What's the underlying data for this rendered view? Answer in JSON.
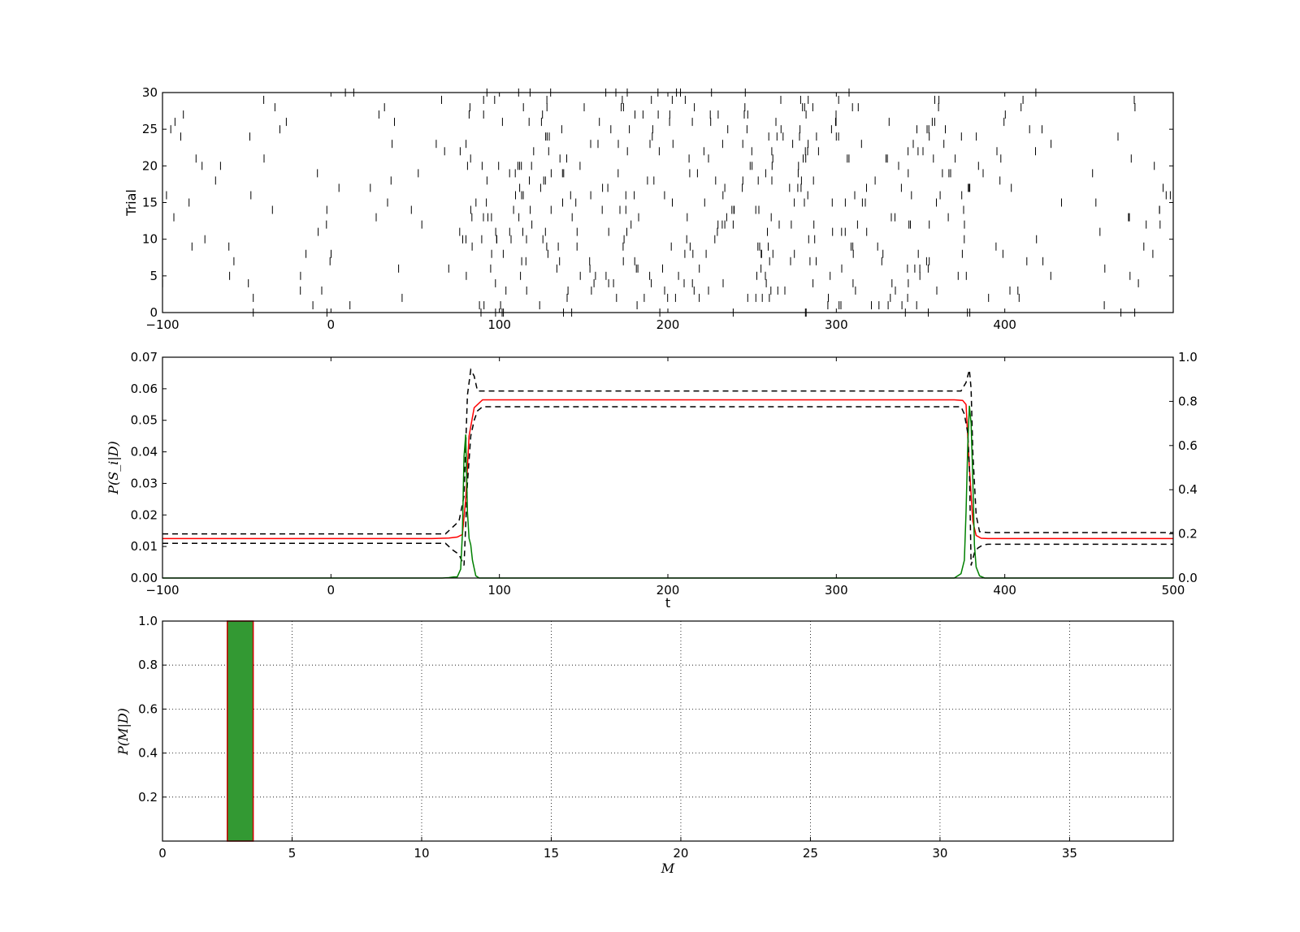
{
  "chart_data": [
    {
      "type": "scatter",
      "marker": "vertical-tick",
      "ylabel": "Trial",
      "xlim": [
        -100,
        500
      ],
      "ylim": [
        0,
        30
      ],
      "xticks": [
        "−100",
        "0",
        "100",
        "200",
        "300",
        "400"
      ],
      "xtick_values": [
        -100,
        0,
        100,
        200,
        300,
        400
      ],
      "yticks": [
        "0",
        "5",
        "10",
        "15",
        "20",
        "25",
        "30"
      ],
      "ytick_values": [
        0,
        5,
        10,
        15,
        20,
        25,
        30
      ],
      "spikes": {
        "trials": 30,
        "baseline": {
          "t_start": -100,
          "t_end": 80,
          "count_per_trial": 2
        },
        "response": {
          "t_start": 80,
          "t_end": 380,
          "count_per_trial": 13
        },
        "post": {
          "t_start": 380,
          "t_end": 500,
          "count_per_trial": 1.6
        },
        "seed": 7
      },
      "color": "#000000"
    },
    {
      "type": "line",
      "xlabel": "t",
      "ylabel": "P(S_i|D)",
      "xlim": [
        -100,
        500
      ],
      "ylim_left": [
        0,
        0.07
      ],
      "ylim_right": [
        0,
        1.0
      ],
      "xticks": [
        "−100",
        "0",
        "100",
        "200",
        "300",
        "400",
        "500"
      ],
      "xtick_values": [
        -100,
        0,
        100,
        200,
        300,
        400,
        500
      ],
      "yticks_left": [
        "0.00",
        "0.01",
        "0.02",
        "0.03",
        "0.04",
        "0.05",
        "0.06",
        "0.07"
      ],
      "ytick_left_values": [
        0,
        0.01,
        0.02,
        0.03,
        0.04,
        0.05,
        0.06,
        0.07
      ],
      "yticks_right": [
        "0.0",
        "0.2",
        "0.4",
        "0.6",
        "0.8",
        "1.0"
      ],
      "ytick_right_values": [
        0,
        0.2,
        0.4,
        0.6,
        0.8,
        1.0
      ],
      "series": [
        {
          "role": "mean",
          "color": "#ff0000",
          "style": "solid",
          "axis": "left",
          "x": [
            -100,
            60,
            70,
            75,
            78,
            80,
            82,
            85,
            90,
            100,
            200,
            300,
            370,
            375,
            377,
            379,
            381,
            383,
            386,
            390,
            400,
            500
          ],
          "y": [
            0.0125,
            0.0125,
            0.0127,
            0.013,
            0.0138,
            0.025,
            0.045,
            0.054,
            0.0565,
            0.0565,
            0.0565,
            0.0565,
            0.0565,
            0.0563,
            0.055,
            0.035,
            0.018,
            0.0135,
            0.0126,
            0.0125,
            0.0125,
            0.0125
          ]
        },
        {
          "role": "upper",
          "color": "#000000",
          "style": "dashed",
          "axis": "left",
          "x": [
            -100,
            68,
            72,
            76,
            79,
            81,
            83,
            85,
            87,
            100,
            200,
            300,
            374,
            377,
            379,
            380,
            381,
            383,
            385,
            390,
            400,
            500
          ],
          "y": [
            0.014,
            0.014,
            0.016,
            0.018,
            0.026,
            0.058,
            0.066,
            0.064,
            0.0593,
            0.0593,
            0.0593,
            0.0593,
            0.0593,
            0.062,
            0.066,
            0.06,
            0.04,
            0.02,
            0.0147,
            0.0144,
            0.0144,
            0.0144
          ]
        },
        {
          "role": "lower",
          "color": "#000000",
          "style": "dashed",
          "axis": "left",
          "x": [
            -100,
            68,
            72,
            76,
            79,
            81,
            83,
            85,
            87,
            90,
            100,
            200,
            300,
            374,
            376,
            378,
            379,
            380,
            382,
            384,
            387,
            390,
            400,
            500
          ],
          "y": [
            0.011,
            0.011,
            0.009,
            0.0075,
            0.004,
            0.03,
            0.045,
            0.05,
            0.053,
            0.0543,
            0.0543,
            0.0543,
            0.0543,
            0.0543,
            0.052,
            0.046,
            0.035,
            0.004,
            0.008,
            0.0095,
            0.0105,
            0.0107,
            0.0107,
            0.0107
          ]
        },
        {
          "role": "changepoint",
          "color": "#008000",
          "style": "solid",
          "axis": "right",
          "x": [
            -100,
            66,
            70,
            73,
            75,
            77,
            78,
            79,
            80,
            81,
            82,
            83,
            84,
            86,
            88,
            100,
            200,
            300,
            370,
            374,
            376,
            377,
            378,
            379,
            380,
            381,
            382,
            383,
            385,
            388,
            400,
            500
          ],
          "y": [
            0,
            0,
            0.002,
            0.005,
            0.005,
            0.04,
            0.2,
            0.55,
            0.65,
            0.3,
            0.18,
            0.15,
            0.08,
            0.01,
            0,
            0,
            0,
            0,
            0,
            0.02,
            0.08,
            0.3,
            0.6,
            0.78,
            0.7,
            0.45,
            0.15,
            0.05,
            0.01,
            0,
            0,
            0
          ]
        }
      ]
    },
    {
      "type": "bar",
      "xlabel": "M",
      "ylabel": "P(M|D)",
      "xlim": [
        0,
        39
      ],
      "ylim": [
        0,
        1.0
      ],
      "xticks": [
        "0",
        "5",
        "10",
        "15",
        "20",
        "25",
        "30",
        "35"
      ],
      "xtick_values": [
        0,
        5,
        10,
        15,
        20,
        25,
        30,
        35
      ],
      "yticks": [
        "0.2",
        "0.4",
        "0.6",
        "0.8",
        "1.0"
      ],
      "ytick_values": [
        0.2,
        0.4,
        0.6,
        0.8,
        1.0
      ],
      "grid": true,
      "bars": [
        {
          "x": 3,
          "value": 1.0,
          "width": 1.0
        }
      ],
      "fill_color": "#339933",
      "edge_color": "#cc0000"
    }
  ]
}
